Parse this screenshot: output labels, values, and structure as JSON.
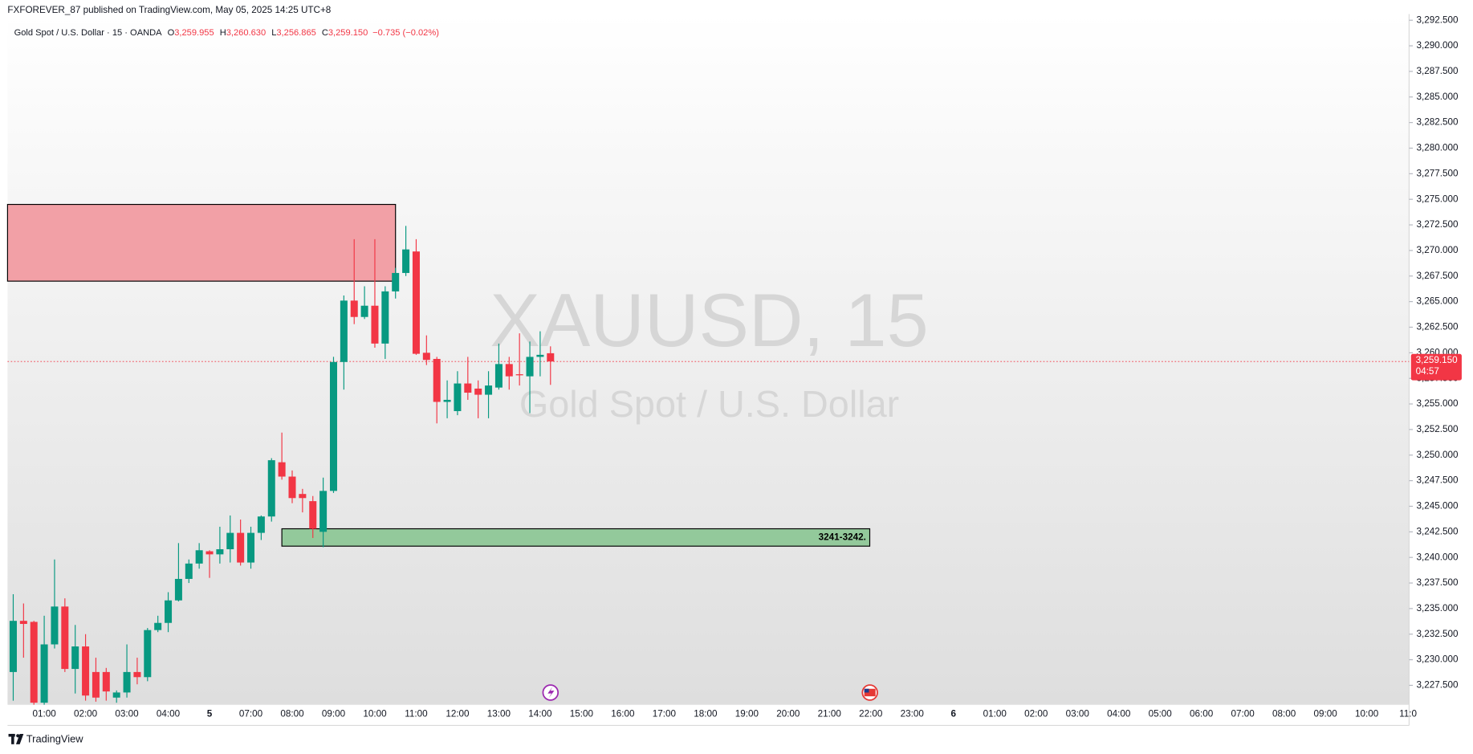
{
  "header": {
    "published": "FXFOREVER_87 published on TradingView.com, May 05, 2025 14:25 UTC+8"
  },
  "footer": {
    "brand": "TradingView"
  },
  "chart_data": {
    "type": "candlestick",
    "instrument": "Gold Spot / U.S. Dollar · 15 · OANDA",
    "legend_values": [
      {
        "key": "O",
        "label": "3,259.955"
      },
      {
        "key": "H",
        "label": "3,260.630"
      },
      {
        "key": "L",
        "label": "3,256.865"
      },
      {
        "key": "C",
        "label": "3,259.150"
      }
    ],
    "change": "−0.735 (−0.02%)",
    "watermark": {
      "symbol": "XAUUSD, 15",
      "description": "Gold Spot / U.S. Dollar"
    },
    "up_color": "#089981",
    "down_color": "#f23645",
    "grid": false,
    "open": [
      3228.8,
      3233.8,
      3233.7,
      3225.8,
      3231.5,
      3235.2,
      3229.1,
      3231.3,
      3228.8,
      3228.8,
      3226.3,
      3226.8,
      3228.8,
      3228.3,
      3232.9,
      3233.6,
      3235.8,
      3237.9,
      3239.4,
      3240.6,
      3240.3,
      3240.8,
      3242.4,
      3239.5,
      3242.4,
      3244.0,
      3249.3,
      3247.9,
      3246.2,
      3245.5,
      3242.5,
      3246.5,
      3259.1,
      3265.1,
      3263.5,
      3264.6,
      3260.9,
      3266.0,
      3267.8,
      3269.9,
      3260.0,
      3259.4,
      3255.2,
      3254.3,
      3257.0,
      3256.5,
      3255.9,
      3256.6,
      3258.9,
      3257.9,
      3257.7,
      3259.6,
      3259.955
    ],
    "high": [
      3236.4,
      3235.5,
      3233.8,
      3234.3,
      3239.8,
      3236.0,
      3233.4,
      3232.5,
      3230.2,
      3229.2,
      3227.0,
      3231.5,
      3230.2,
      3233.1,
      3234.3,
      3236.6,
      3241.4,
      3239.8,
      3241.4,
      3240.7,
      3243.0,
      3244.1,
      3243.7,
      3243.0,
      3244.1,
      3249.7,
      3252.2,
      3248.5,
      3246.7,
      3246.0,
      3247.8,
      3259.6,
      3265.6,
      3271.1,
      3266.5,
      3271.1,
      3266.5,
      3268.3,
      3272.4,
      3271.1,
      3261.7,
      3259.6,
      3257.3,
      3258.2,
      3259.6,
      3257.3,
      3258.2,
      3260.9,
      3259.6,
      3261.9,
      3261.1,
      3262.1,
      3260.63
    ],
    "low": [
      3226.0,
      3230.2,
      3225.6,
      3225.6,
      3231.1,
      3228.8,
      3226.7,
      3226.0,
      3225.9,
      3226.0,
      3225.8,
      3226.3,
      3227.6,
      3227.9,
      3232.7,
      3232.7,
      3235.7,
      3237.5,
      3238.9,
      3238.0,
      3239.4,
      3239.5,
      3239.2,
      3238.9,
      3241.7,
      3243.5,
      3247.6,
      3245.3,
      3244.4,
      3241.9,
      3241.0,
      3246.3,
      3256.4,
      3262.8,
      3263.3,
      3260.5,
      3259.4,
      3265.3,
      3267.5,
      3259.8,
      3258.8,
      3253.1,
      3253.6,
      3253.9,
      3255.4,
      3253.6,
      3253.6,
      3256.4,
      3256.4,
      3256.8,
      3254.1,
      3257.7,
      3256.865
    ],
    "close": [
      3233.8,
      3233.5,
      3225.8,
      3231.5,
      3235.2,
      3229.1,
      3231.3,
      3226.5,
      3226.3,
      3226.9,
      3226.8,
      3228.8,
      3228.3,
      3232.9,
      3233.6,
      3235.8,
      3237.9,
      3239.4,
      3240.7,
      3240.3,
      3240.8,
      3242.4,
      3239.5,
      3242.4,
      3244.0,
      3249.5,
      3247.9,
      3245.8,
      3245.8,
      3242.8,
      3246.5,
      3259.1,
      3265.1,
      3263.5,
      3264.6,
      3260.9,
      3266.0,
      3267.8,
      3270.1,
      3259.9,
      3259.3,
      3255.2,
      3255.4,
      3257.0,
      3256.1,
      3255.9,
      3256.8,
      3258.9,
      3257.7,
      3257.8,
      3259.6,
      3259.8,
      3259.15
    ],
    "xlim": [
      -0.55,
      135.1
    ],
    "xticks": [
      {
        "value": 3,
        "label": "01:00"
      },
      {
        "value": 7,
        "label": "02:00"
      },
      {
        "value": 11,
        "label": "03:00"
      },
      {
        "value": 15,
        "label": "04:00"
      },
      {
        "value": 19,
        "label": "5"
      },
      {
        "value": 23,
        "label": "07:00"
      },
      {
        "value": 27,
        "label": "08:00"
      },
      {
        "value": 31,
        "label": "09:00"
      },
      {
        "value": 35,
        "label": "10:00"
      },
      {
        "value": 39,
        "label": "11:00"
      },
      {
        "value": 43,
        "label": "12:00"
      },
      {
        "value": 47,
        "label": "13:00"
      },
      {
        "value": 51,
        "label": "14:00"
      },
      {
        "value": 55,
        "label": "15:00"
      },
      {
        "value": 59,
        "label": "16:00"
      },
      {
        "value": 63,
        "label": "17:00"
      },
      {
        "value": 67,
        "label": "18:00"
      },
      {
        "value": 71,
        "label": "19:00"
      },
      {
        "value": 75,
        "label": "20:00"
      },
      {
        "value": 79,
        "label": "21:00"
      },
      {
        "value": 83,
        "label": "22:00"
      },
      {
        "value": 87,
        "label": "23:00"
      },
      {
        "value": 91,
        "label": "6"
      },
      {
        "value": 95,
        "label": "01:00"
      },
      {
        "value": 99,
        "label": "02:00"
      },
      {
        "value": 103,
        "label": "03:00"
      },
      {
        "value": 107,
        "label": "04:00"
      },
      {
        "value": 111,
        "label": "05:00"
      },
      {
        "value": 115,
        "label": "06:00"
      },
      {
        "value": 119,
        "label": "07:00"
      },
      {
        "value": 123,
        "label": "08:00"
      },
      {
        "value": 127,
        "label": "09:00"
      },
      {
        "value": 131,
        "label": "10:00"
      },
      {
        "value": 135,
        "label": "11:0"
      }
    ],
    "ylim": [
      3225.6,
      3293.1
    ],
    "yticks": [
      {
        "value": 3227.5,
        "label": "3,227.500"
      },
      {
        "value": 3230,
        "label": "3,230.000"
      },
      {
        "value": 3232.5,
        "label": "3,232.500"
      },
      {
        "value": 3235,
        "label": "3,235.000"
      },
      {
        "value": 3237.5,
        "label": "3,237.500"
      },
      {
        "value": 3240,
        "label": "3,240.000"
      },
      {
        "value": 3242.5,
        "label": "3,242.500"
      },
      {
        "value": 3245,
        "label": "3,245.000"
      },
      {
        "value": 3247.5,
        "label": "3,247.500"
      },
      {
        "value": 3250,
        "label": "3,250.000"
      },
      {
        "value": 3252.5,
        "label": "3,252.500"
      },
      {
        "value": 3255,
        "label": "3,255.000"
      },
      {
        "value": 3257.5,
        "label": "3,257.500"
      },
      {
        "value": 3260,
        "label": "3,260.000"
      },
      {
        "value": 3262.5,
        "label": "3,262.500"
      },
      {
        "value": 3265,
        "label": "3,265.000"
      },
      {
        "value": 3267.5,
        "label": "3,267.500"
      },
      {
        "value": 3270,
        "label": "3,270.000"
      },
      {
        "value": 3272.5,
        "label": "3,272.500"
      },
      {
        "value": 3275,
        "label": "3,275.000"
      },
      {
        "value": 3277.5,
        "label": "3,277.500"
      },
      {
        "value": 3280,
        "label": "3,280.000"
      },
      {
        "value": 3282.5,
        "label": "3,282.500"
      },
      {
        "value": 3285,
        "label": "3,285.000"
      },
      {
        "value": 3287.5,
        "label": "3,287.500"
      },
      {
        "value": 3290,
        "label": "3,290.000"
      },
      {
        "value": 3292.5,
        "label": "3,292.500"
      }
    ],
    "last_price": {
      "value": 3259.15,
      "label": "3,259.150",
      "countdown": "04:57",
      "color": "#f23645"
    },
    "zones": [
      {
        "x": [
          -0.55,
          37.0
        ],
        "y": [
          3267.0,
          3274.5
        ],
        "color": "#f2a0a6"
      },
      {
        "x": [
          26.0,
          82.9
        ],
        "y": [
          3241.1,
          3242.8
        ],
        "color": "#93c99b",
        "label": "3241-3242."
      }
    ]
  }
}
